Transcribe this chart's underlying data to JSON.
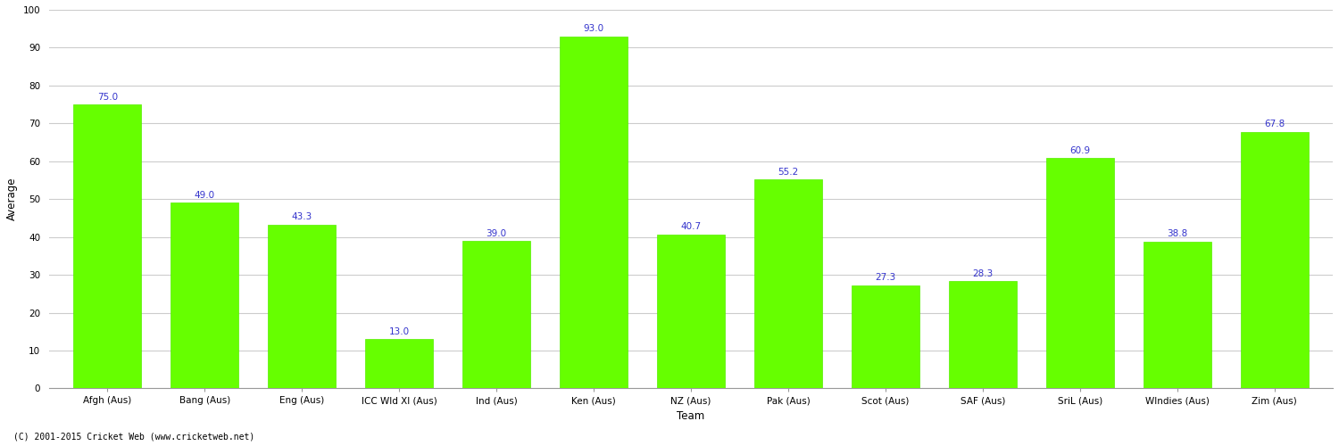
{
  "categories": [
    "Afgh (Aus)",
    "Bang (Aus)",
    "Eng (Aus)",
    "ICC Wld XI (Aus)",
    "Ind (Aus)",
    "Ken (Aus)",
    "NZ (Aus)",
    "Pak (Aus)",
    "Scot (Aus)",
    "SAF (Aus)",
    "SriL (Aus)",
    "WIndies (Aus)",
    "Zim (Aus)"
  ],
  "values": [
    75.0,
    49.0,
    43.3,
    13.0,
    39.0,
    93.0,
    40.7,
    55.2,
    27.3,
    28.3,
    60.9,
    38.8,
    67.8
  ],
  "bar_color": "#66ff00",
  "bar_edge_color": "#55ee00",
  "title": "",
  "xlabel": "Team",
  "ylabel": "Average",
  "ylim": [
    0,
    100
  ],
  "yticks": [
    0,
    10,
    20,
    30,
    40,
    50,
    60,
    70,
    80,
    90,
    100
  ],
  "label_color": "#3333cc",
  "label_fontsize": 7.5,
  "axis_label_fontsize": 8.5,
  "tick_fontsize": 7.5,
  "background_color": "#ffffff",
  "grid_color": "#cccccc",
  "footer": "(C) 2001-2015 Cricket Web (www.cricketweb.net)"
}
